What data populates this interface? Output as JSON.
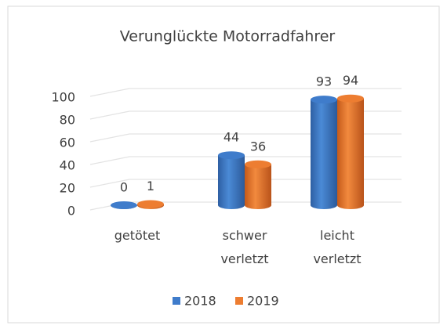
{
  "chart_data": {
    "type": "bar3d",
    "title": "Verunglückte Motorradfahrer",
    "categories": [
      "getötet",
      "schwer verletzt",
      "leicht verletzt"
    ],
    "series": [
      {
        "name": "2018",
        "color": "#3f7ccb",
        "values": [
          0,
          44,
          93
        ]
      },
      {
        "name": "2019",
        "color": "#ed7d31",
        "values": [
          1,
          36,
          94
        ]
      }
    ],
    "ylim": [
      0,
      100
    ],
    "yticks": [
      0,
      20,
      40,
      60,
      80,
      100
    ],
    "grid": true,
    "legend": "bottom"
  }
}
